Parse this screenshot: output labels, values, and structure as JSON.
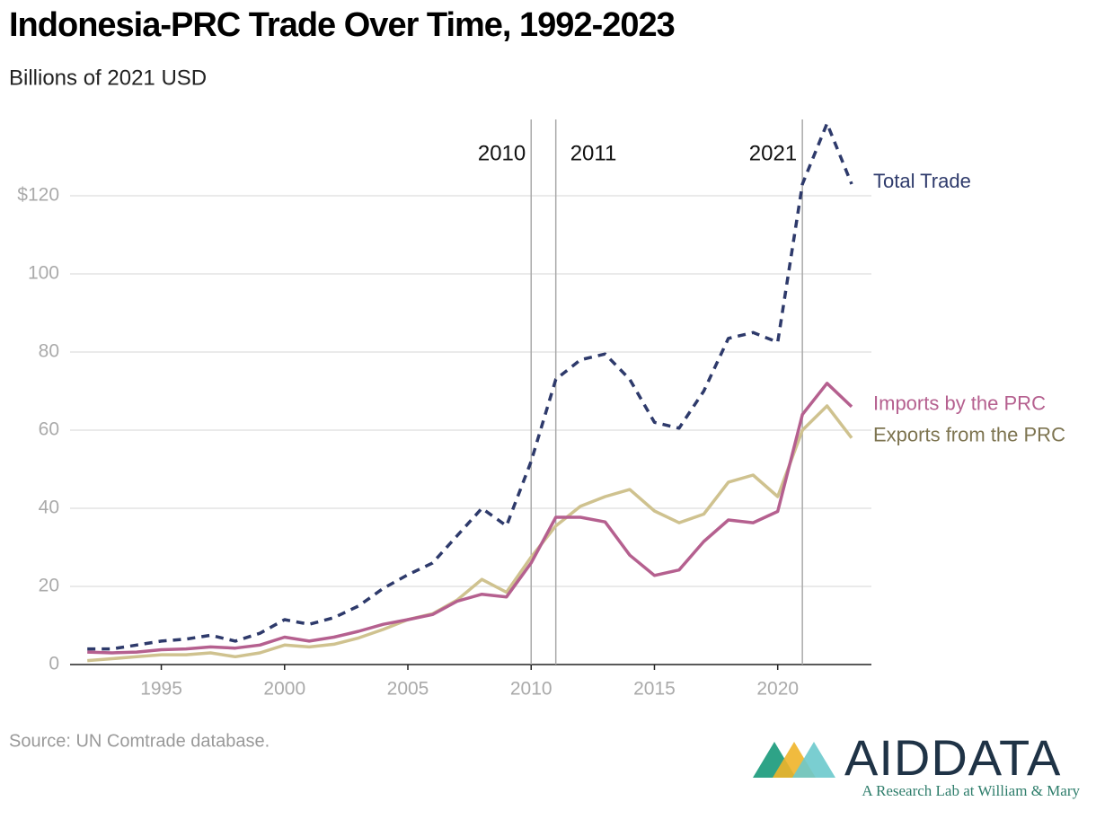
{
  "chart_data": {
    "type": "line",
    "title": "Indonesia-PRC Trade Over Time, 1992-2023",
    "subtitle": "Billions of 2021 USD",
    "source": "Source: UN Comtrade database.",
    "logo": {
      "name": "AIDDATA",
      "tagline": "A Research Lab at William & Mary"
    },
    "x": [
      1992,
      1993,
      1994,
      1995,
      1996,
      1997,
      1998,
      1999,
      2000,
      2001,
      2002,
      2003,
      2004,
      2005,
      2006,
      2007,
      2008,
      2009,
      2010,
      2011,
      2012,
      2013,
      2014,
      2015,
      2016,
      2017,
      2018,
      2019,
      2020,
      2021,
      2022,
      2023
    ],
    "series": [
      {
        "name": "Total Trade",
        "color": "#2e3a6b",
        "label_color": "#2e3a6b",
        "dashed": true,
        "values": [
          4,
          4,
          5,
          6,
          6.5,
          7.5,
          6,
          8,
          11.5,
          10.3,
          12,
          15,
          19.5,
          23,
          26,
          33,
          40,
          35.5,
          52,
          73,
          78,
          79.5,
          73,
          62,
          60.5,
          70,
          83.5,
          85,
          82.5,
          123,
          138.5,
          123
        ]
      },
      {
        "name": "Imports by the PRC",
        "color": "#b5608f",
        "label_color": "#b5608f",
        "dashed": false,
        "values": [
          3.2,
          3,
          3.2,
          3.8,
          4,
          4.5,
          4.2,
          5,
          7,
          6,
          7,
          8.5,
          10.3,
          11.5,
          12.8,
          16.2,
          18,
          17.3,
          26,
          37.7,
          37.7,
          36.5,
          28,
          22.8,
          24.2,
          31.5,
          37,
          36.3,
          39.2,
          64,
          72,
          66
        ]
      },
      {
        "name": "Exports from the PRC",
        "color": "#cfc28f",
        "label_color": "#7d7450",
        "dashed": false,
        "values": [
          1,
          1.5,
          2,
          2.5,
          2.5,
          3,
          2,
          3,
          5,
          4.5,
          5.2,
          6.8,
          9,
          11.5,
          13,
          16.5,
          21.8,
          18.5,
          27.5,
          35.5,
          40.5,
          43,
          44.8,
          39.3,
          36.3,
          38.5,
          46.7,
          48.5,
          43,
          60,
          66.2,
          58
        ]
      }
    ],
    "xlim": [
      1991.3,
      2023.8
    ],
    "xticks": [
      1995,
      2000,
      2005,
      2010,
      2015,
      2020
    ],
    "ylim": [
      0,
      140
    ],
    "yticks": [
      0,
      20,
      40,
      60,
      80,
      100,
      {
        "value": 120,
        "label": "$120"
      }
    ],
    "vlines": [
      2010,
      2011,
      2021
    ],
    "grid": true
  }
}
